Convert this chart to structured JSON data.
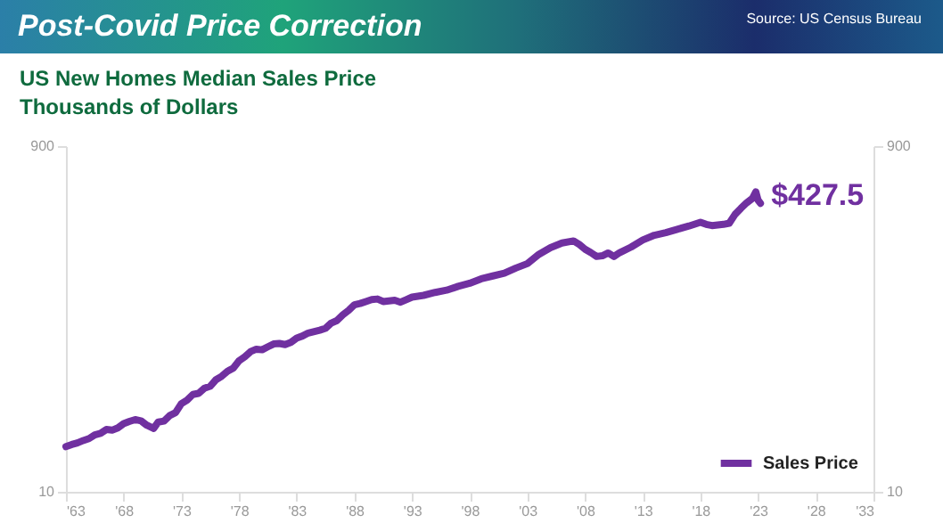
{
  "chart_data": {
    "type": "line",
    "title": "Post-Covid Price Correction",
    "subtitle": "US New Homes Median Sales Price",
    "ylabel": "Thousands of Dollars",
    "annotations": [
      "Source: US Census Bureau",
      {
        "text": "$427.5",
        "x": 2023.2,
        "y": 427.5
      }
    ],
    "log": "y",
    "grid": false,
    "legend": "bottom right",
    "line_style": "solid",
    "marker": "none",
    "xlim": [
      1963,
      2033
    ],
    "xticks": [
      {
        "value": 1963,
        "label": "'63"
      },
      {
        "value": 1968,
        "label": "'68"
      },
      {
        "value": 1973,
        "label": "'73"
      },
      {
        "value": 1978,
        "label": "'78"
      },
      {
        "value": 1983,
        "label": "'83"
      },
      {
        "value": 1988,
        "label": "'88"
      },
      {
        "value": 1993,
        "label": "'93"
      },
      {
        "value": 1998,
        "label": "'98"
      },
      {
        "value": 2003,
        "label": "'03"
      },
      {
        "value": 2008,
        "label": "'08"
      },
      {
        "value": 2013,
        "label": "'13"
      },
      {
        "value": 2018,
        "label": "'18"
      },
      {
        "value": 2023,
        "label": "'23"
      },
      {
        "value": 2028,
        "label": "'28"
      },
      {
        "value": 2033,
        "label": "'33"
      }
    ],
    "ylim": [
      10,
      900
    ],
    "yticks": [
      10,
      900
    ],
    "y2lim": [
      10,
      900
    ],
    "y2ticks": [
      10,
      900
    ],
    "x": [
      1963,
      1963.5,
      1964,
      1964.5,
      1965,
      1965.5,
      1966,
      1966.5,
      1967,
      1967.5,
      1968,
      1968.5,
      1969,
      1969.5,
      1970,
      1970.6,
      1971,
      1971.5,
      1972,
      1972.5,
      1973,
      1973.5,
      1974,
      1974.5,
      1975,
      1975.5,
      1976,
      1976.5,
      1977,
      1977.5,
      1978,
      1978.5,
      1979,
      1979.5,
      1980,
      1980.5,
      1981,
      1981.5,
      1982,
      1982.5,
      1983,
      1983.5,
      1984,
      1985,
      1985.5,
      1986,
      1986.5,
      1987,
      1987.5,
      1988,
      1988.5,
      1989,
      1989.5,
      1990,
      1990.5,
      1991,
      1991.5,
      1992,
      1992.5,
      1993,
      1994,
      1995,
      1996,
      1997,
      1998,
      1999,
      2000,
      2001,
      2002,
      2003,
      2004,
      2005,
      2006,
      2007,
      2007.5,
      2008,
      2008.5,
      2009,
      2009.5,
      2010,
      2010.5,
      2011,
      2012,
      2013,
      2014,
      2015,
      2016,
      2017,
      2018,
      2018.5,
      2019,
      2020,
      2020.5,
      2021,
      2021.5,
      2022,
      2022.5,
      2022.8,
      2023,
      2023.2
    ],
    "series": [
      {
        "name": "Sales Price",
        "color": "#7030a0",
        "values": [
          18,
          18.5,
          18.9,
          19.5,
          20,
          21,
          21.4,
          22.5,
          22.3,
          23,
          24.3,
          25,
          25.6,
          25.2,
          23.8,
          22.8,
          24.8,
          25.1,
          27,
          28,
          31.5,
          33,
          35.5,
          36,
          38.5,
          39.5,
          43,
          45,
          48,
          50,
          55,
          58,
          62,
          64,
          63.5,
          66,
          68.5,
          69,
          68,
          70,
          74,
          76,
          79,
          82,
          84,
          90,
          93,
          100,
          106,
          114,
          116,
          119,
          122,
          123,
          119,
          120,
          121,
          118,
          122,
          126,
          129,
          134,
          138,
          145,
          151,
          160,
          166,
          172,
          184,
          195,
          220,
          240,
          255,
          262,
          250,
          235,
          225,
          214,
          216,
          224,
          214,
          225,
          242,
          265,
          282,
          292,
          305,
          318,
          334,
          325,
          320,
          325,
          330,
          370,
          400,
          430,
          455,
          496,
          445,
          427.5
        ]
      }
    ]
  }
}
